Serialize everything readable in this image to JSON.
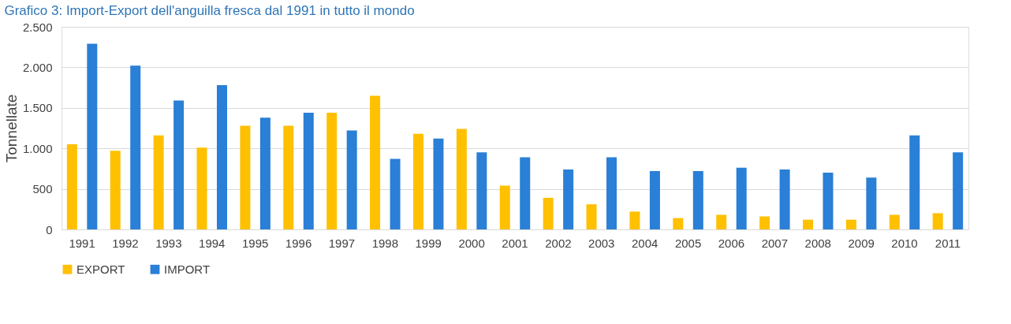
{
  "chart_data": {
    "type": "bar",
    "title": "Grafico 3: Import-Export dell'anguilla fresca dal 1991 in tutto il mondo",
    "ylabel": "Tonnellate",
    "categories": [
      "1991",
      "1992",
      "1993",
      "1994",
      "1995",
      "1996",
      "1997",
      "1998",
      "1999",
      "2000",
      "2001",
      "2002",
      "2003",
      "2004",
      "2005",
      "2006",
      "2007",
      "2008",
      "2009",
      "2010",
      "2011"
    ],
    "series": [
      {
        "name": "EXPORT",
        "color": "#ffc000",
        "values": [
          1050,
          970,
          1160,
          1010,
          1280,
          1280,
          1440,
          1650,
          1180,
          1240,
          540,
          390,
          310,
          220,
          140,
          180,
          160,
          120,
          120,
          180,
          200
        ]
      },
      {
        "name": "IMPORT",
        "color": "#2a7fd6",
        "values": [
          2290,
          2020,
          1590,
          1780,
          1380,
          1440,
          1220,
          870,
          1120,
          950,
          890,
          740,
          890,
          720,
          720,
          760,
          740,
          700,
          640,
          1160,
          950
        ]
      }
    ],
    "ylim": [
      0,
      2500
    ],
    "yticks": [
      0,
      500,
      {
        "value": 1000,
        "label": "1.000"
      },
      {
        "value": 1500,
        "label": "1.500"
      },
      {
        "value": 2000,
        "label": "2.000"
      },
      {
        "value": 2500,
        "label": "2.500"
      }
    ],
    "grid": "y",
    "legend": "bottom"
  }
}
